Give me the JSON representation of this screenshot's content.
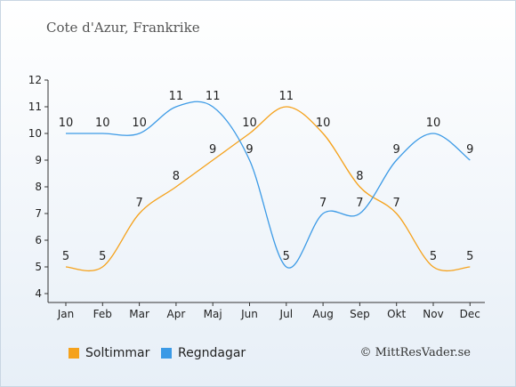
{
  "title": "Cote d'Azur, Frankrike",
  "credit": "© MittResVader.se",
  "chart_data": {
    "type": "line",
    "categories": [
      "Jan",
      "Feb",
      "Mar",
      "Apr",
      "Maj",
      "Jun",
      "Jul",
      "Aug",
      "Sep",
      "Okt",
      "Nov",
      "Dec"
    ],
    "ylim": [
      4,
      12
    ],
    "yticks": [
      4,
      5,
      6,
      7,
      8,
      9,
      10,
      11,
      12
    ],
    "grid": false,
    "legend_placement": "bottom-left",
    "series": [
      {
        "name": "Soltimmar",
        "color": "#f5a21c",
        "values": [
          5,
          5,
          7,
          8,
          9,
          10,
          11,
          10,
          8,
          7,
          5,
          5
        ]
      },
      {
        "name": "Regndagar",
        "color": "#3b9ae6",
        "values": [
          10,
          10,
          10,
          11,
          11,
          9,
          5,
          7,
          7,
          9,
          10,
          9
        ]
      }
    ]
  }
}
